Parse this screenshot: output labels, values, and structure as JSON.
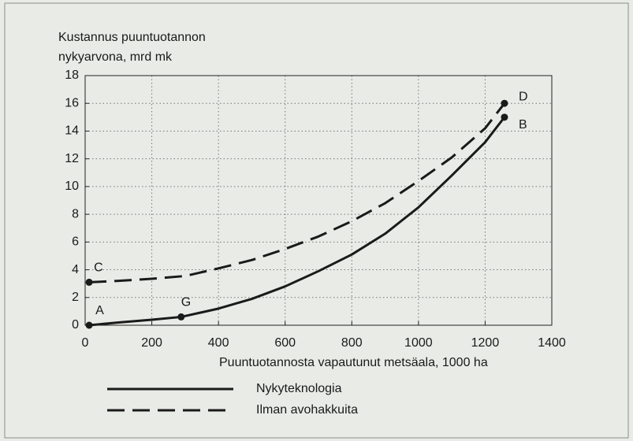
{
  "chart_data": {
    "type": "line",
    "ylabel": [
      "Kustannus puuntuotannon",
      "nykyarvona, mrd mk"
    ],
    "xlabel": "Puuntuotannosta vapautunut metsäala, 1000 ha",
    "series": [
      {
        "name": "Nykyteknologia",
        "color": "#1a1a1a",
        "style": "solid",
        "x": [
          12,
          100,
          200,
          288,
          400,
          500,
          600,
          700,
          800,
          900,
          1000,
          1100,
          1200,
          1258
        ],
        "values": [
          0,
          0.2,
          0.4,
          0.6,
          1.2,
          1.9,
          2.8,
          3.9,
          5.1,
          6.6,
          8.5,
          10.8,
          13.2,
          15
        ]
      },
      {
        "name": "Ilman avohakkuita",
        "color": "#1a1a1a",
        "style": "dashed",
        "x": [
          12,
          100,
          200,
          300,
          400,
          500,
          600,
          700,
          800,
          900,
          1000,
          1100,
          1200,
          1258
        ],
        "values": [
          3.1,
          3.2,
          3.35,
          3.55,
          4.1,
          4.7,
          5.5,
          6.4,
          7.5,
          8.8,
          10.4,
          12.1,
          14.2,
          16
        ]
      }
    ],
    "annotations": [
      {
        "text": "A",
        "x": 12,
        "y": 0
      },
      {
        "text": "G",
        "x": 288,
        "y": 0.6
      },
      {
        "text": "C",
        "x": 12,
        "y": 3.1
      },
      {
        "text": "D",
        "x": 1258,
        "y": 16
      },
      {
        "text": "B",
        "x": 1258,
        "y": 15
      }
    ],
    "xlim": [
      0,
      1400
    ],
    "xticks": [
      0,
      200,
      400,
      600,
      800,
      1000,
      1200,
      1400
    ],
    "ylim": [
      0,
      18
    ],
    "yticks": [
      0,
      2,
      4,
      6,
      8,
      10,
      12,
      14,
      16,
      18
    ],
    "grid": true,
    "legend": "bottom"
  }
}
